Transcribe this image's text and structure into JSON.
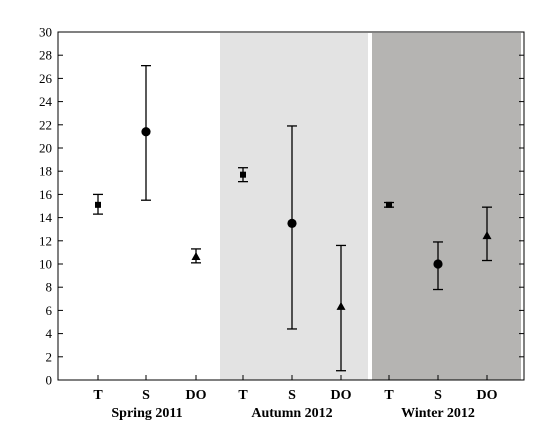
{
  "chart_data": {
    "type": "scatter",
    "ylim": [
      0,
      30
    ],
    "ytick_step": 2,
    "grid": false,
    "groups": [
      {
        "label": "Spring 2011",
        "background": "#ffffff",
        "points": [
          {
            "category": "T",
            "marker": "square",
            "mean": 15.1,
            "low": 14.3,
            "high": 16.0
          },
          {
            "category": "S",
            "marker": "circle",
            "mean": 21.4,
            "low": 15.5,
            "high": 27.1
          },
          {
            "category": "DO",
            "marker": "triangle",
            "mean": 10.6,
            "low": 10.1,
            "high": 11.3
          }
        ]
      },
      {
        "label": "Autumn 2012",
        "background": "#e3e3e3",
        "points": [
          {
            "category": "T",
            "marker": "square",
            "mean": 17.7,
            "low": 17.1,
            "high": 18.3
          },
          {
            "category": "S",
            "marker": "circle",
            "mean": 13.5,
            "low": 4.4,
            "high": 21.9
          },
          {
            "category": "DO",
            "marker": "triangle",
            "mean": 6.3,
            "low": 0.8,
            "high": 11.6
          }
        ]
      },
      {
        "label": "Winter 2012",
        "background": "#b5b4b2",
        "points": [
          {
            "category": "T",
            "marker": "square",
            "mean": 15.1,
            "low": 14.9,
            "high": 15.3
          },
          {
            "category": "S",
            "marker": "circle",
            "mean": 10.0,
            "low": 7.8,
            "high": 11.9
          },
          {
            "category": "DO",
            "marker": "triangle",
            "mean": 12.4,
            "low": 10.3,
            "high": 14.9
          }
        ]
      }
    ]
  }
}
